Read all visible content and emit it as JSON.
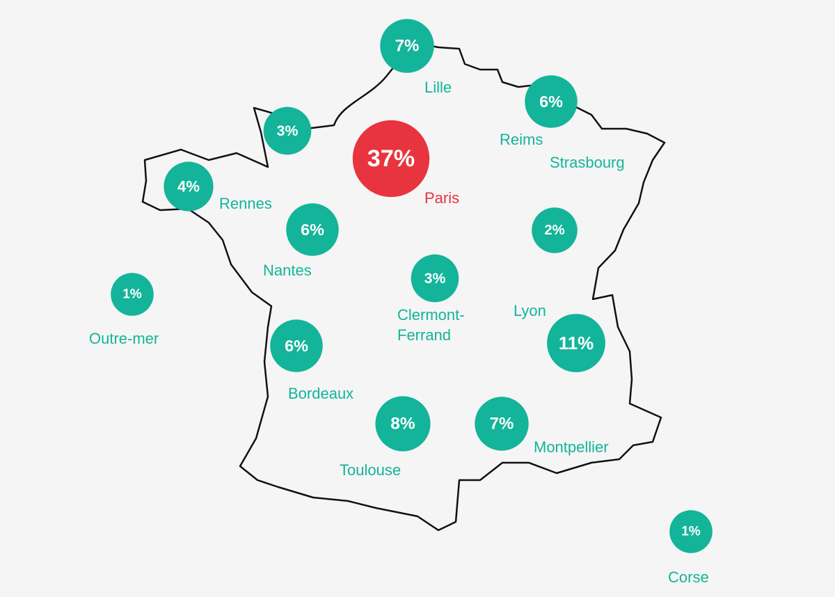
{
  "regions": [
    {
      "name": "Lille",
      "value": 7,
      "label": "7%",
      "color": "#13b49a"
    },
    {
      "value": 3,
      "label": "3%",
      "color": "#13b49a"
    },
    {
      "name": "Reims",
      "value": 6,
      "label": "6%",
      "color": "#13b49a"
    },
    {
      "name": "Strasbourg",
      "value": 2,
      "label": "2%",
      "color": "#13b49a"
    },
    {
      "name": "Paris",
      "value": 37,
      "label": "37%",
      "color": "#e8343f"
    },
    {
      "name": "Rennes",
      "value": 4,
      "label": "4%",
      "color": "#13b49a"
    },
    {
      "name": "Nantes",
      "value": 6,
      "label": "6%",
      "color": "#13b49a"
    },
    {
      "name": "Clermont-Ferrand",
      "value": 3,
      "label": "3%",
      "color": "#13b49a"
    },
    {
      "name": "Lyon",
      "value": 11,
      "label": "11%",
      "color": "#13b49a"
    },
    {
      "name": "Outre-mer",
      "value": 1,
      "label": "1%",
      "color": "#13b49a"
    },
    {
      "name": "Bordeaux",
      "value": 6,
      "label": "6%",
      "color": "#13b49a"
    },
    {
      "name": "Toulouse",
      "value": 8,
      "label": "8%",
      "color": "#13b49a"
    },
    {
      "name": "Montpellier",
      "value": 7,
      "label": "7%",
      "color": "#13b49a"
    },
    {
      "name": "Corse",
      "value": 1,
      "label": "1%",
      "color": "#13b49a"
    }
  ]
}
